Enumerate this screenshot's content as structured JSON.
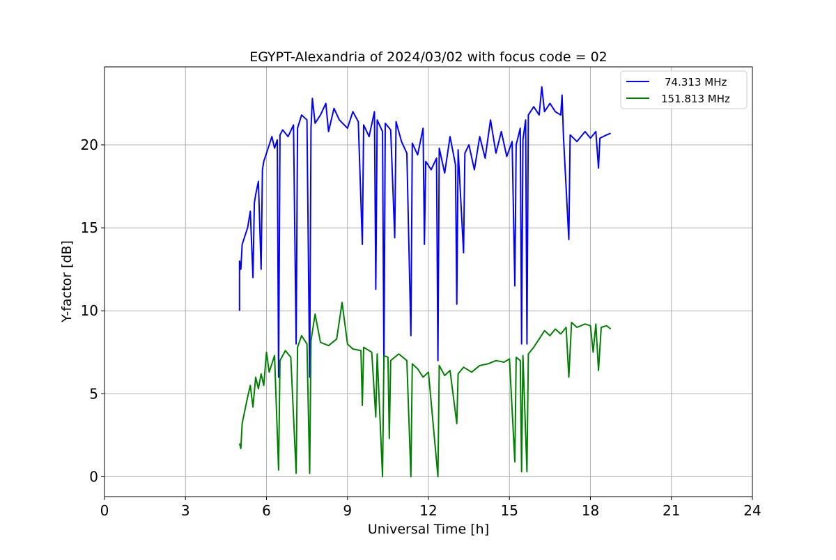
{
  "chart_data": {
    "type": "line",
    "title": "EGYPT-Alexandria of 2024/03/02 with focus code = 02",
    "xlabel": "Universal Time [h]",
    "ylabel": "Y-factor [dB]",
    "xlim": [
      0,
      24
    ],
    "ylim": [
      -1.2,
      24.7
    ],
    "x_ticks": [
      0,
      3,
      6,
      9,
      12,
      15,
      18,
      21,
      24
    ],
    "x_tick_labels": [
      "0",
      "3",
      "6",
      "9",
      "12",
      "15",
      "18",
      "21",
      "24"
    ],
    "y_ticks": [
      0,
      5,
      10,
      15,
      20
    ],
    "y_tick_labels": [
      "0",
      "5",
      "10",
      "15",
      "20"
    ],
    "grid": true,
    "legend_placement": "top-right",
    "series": [
      {
        "name": "74.313 MHz",
        "color": "#0000ff",
        "points": [
          [
            5.0,
            10.0
          ],
          [
            5.0,
            13.0
          ],
          [
            5.05,
            12.5
          ],
          [
            5.1,
            14.0
          ],
          [
            5.2,
            14.5
          ],
          [
            5.3,
            15.0
          ],
          [
            5.4,
            16.0
          ],
          [
            5.5,
            12.0
          ],
          [
            5.55,
            16.5
          ],
          [
            5.6,
            17.0
          ],
          [
            5.7,
            17.8
          ],
          [
            5.8,
            12.5
          ],
          [
            5.85,
            18.5
          ],
          [
            5.9,
            19.0
          ],
          [
            6.0,
            19.5
          ],
          [
            6.1,
            20.0
          ],
          [
            6.2,
            20.5
          ],
          [
            6.3,
            19.8
          ],
          [
            6.4,
            20.3
          ],
          [
            6.45,
            6.0
          ],
          [
            6.5,
            20.6
          ],
          [
            6.6,
            20.9
          ],
          [
            6.8,
            20.5
          ],
          [
            7.0,
            21.2
          ],
          [
            7.1,
            8.0
          ],
          [
            7.15,
            21.0
          ],
          [
            7.3,
            21.8
          ],
          [
            7.5,
            21.5
          ],
          [
            7.6,
            6.0
          ],
          [
            7.65,
            21.0
          ],
          [
            7.7,
            22.8
          ],
          [
            7.8,
            21.3
          ],
          [
            8.0,
            21.8
          ],
          [
            8.2,
            22.5
          ],
          [
            8.3,
            20.8
          ],
          [
            8.5,
            22.2
          ],
          [
            8.7,
            21.5
          ],
          [
            9.0,
            21.0
          ],
          [
            9.2,
            22.0
          ],
          [
            9.4,
            21.4
          ],
          [
            9.55,
            14.0
          ],
          [
            9.6,
            21.2
          ],
          [
            9.8,
            20.5
          ],
          [
            10.0,
            22.0
          ],
          [
            10.05,
            11.3
          ],
          [
            10.1,
            21.5
          ],
          [
            10.3,
            20.8
          ],
          [
            10.35,
            6.5
          ],
          [
            10.4,
            21.3
          ],
          [
            10.6,
            20.9
          ],
          [
            10.75,
            14.4
          ],
          [
            10.8,
            21.4
          ],
          [
            11.0,
            20.2
          ],
          [
            11.2,
            19.5
          ],
          [
            11.35,
            8.5
          ],
          [
            11.4,
            20.1
          ],
          [
            11.6,
            19.4
          ],
          [
            11.8,
            21.0
          ],
          [
            11.85,
            14.0
          ],
          [
            11.9,
            19.0
          ],
          [
            12.1,
            18.5
          ],
          [
            12.3,
            19.2
          ],
          [
            12.35,
            7.0
          ],
          [
            12.4,
            19.8
          ],
          [
            12.6,
            18.3
          ],
          [
            12.8,
            20.5
          ],
          [
            13.0,
            18.8
          ],
          [
            13.05,
            10.4
          ],
          [
            13.1,
            19.7
          ],
          [
            13.3,
            13.5
          ],
          [
            13.35,
            19.5
          ],
          [
            13.5,
            20.0
          ],
          [
            13.7,
            18.5
          ],
          [
            13.9,
            20.5
          ],
          [
            14.1,
            19.2
          ],
          [
            14.3,
            21.5
          ],
          [
            14.5,
            19.5
          ],
          [
            14.7,
            20.8
          ],
          [
            14.9,
            19.3
          ],
          [
            15.1,
            20.2
          ],
          [
            15.2,
            11.5
          ],
          [
            15.25,
            20.0
          ],
          [
            15.4,
            21.0
          ],
          [
            15.45,
            8.0
          ],
          [
            15.5,
            20.3
          ],
          [
            15.6,
            21.5
          ],
          [
            15.65,
            8.0
          ],
          [
            15.7,
            21.8
          ],
          [
            15.9,
            22.3
          ],
          [
            16.1,
            21.8
          ],
          [
            16.2,
            23.5
          ],
          [
            16.3,
            22.0
          ],
          [
            16.5,
            22.5
          ],
          [
            16.7,
            22.0
          ],
          [
            16.9,
            21.8
          ],
          [
            16.95,
            23.0
          ],
          [
            17.0,
            20.5
          ],
          [
            17.2,
            14.3
          ],
          [
            17.25,
            20.6
          ],
          [
            17.5,
            20.2
          ],
          [
            17.8,
            20.8
          ],
          [
            18.0,
            20.4
          ],
          [
            18.2,
            20.8
          ],
          [
            18.3,
            18.6
          ],
          [
            18.35,
            20.4
          ],
          [
            18.6,
            20.6
          ],
          [
            18.75,
            20.7
          ]
        ]
      },
      {
        "name": "151.813 MHz",
        "color": "#008000",
        "points": [
          [
            5.0,
            2.0
          ],
          [
            5.05,
            1.7
          ],
          [
            5.1,
            3.2
          ],
          [
            5.2,
            4.0
          ],
          [
            5.3,
            4.8
          ],
          [
            5.4,
            5.5
          ],
          [
            5.5,
            4.2
          ],
          [
            5.6,
            6.0
          ],
          [
            5.7,
            5.3
          ],
          [
            5.8,
            6.2
          ],
          [
            5.9,
            5.5
          ],
          [
            6.0,
            7.5
          ],
          [
            6.1,
            6.3
          ],
          [
            6.3,
            7.3
          ],
          [
            6.45,
            0.4
          ],
          [
            6.5,
            7.0
          ],
          [
            6.7,
            7.6
          ],
          [
            6.9,
            7.2
          ],
          [
            7.1,
            0.2
          ],
          [
            7.15,
            7.8
          ],
          [
            7.3,
            8.5
          ],
          [
            7.5,
            8.0
          ],
          [
            7.6,
            0.2
          ],
          [
            7.65,
            8.2
          ],
          [
            7.8,
            9.8
          ],
          [
            8.0,
            8.1
          ],
          [
            8.3,
            7.9
          ],
          [
            8.6,
            8.3
          ],
          [
            8.8,
            10.5
          ],
          [
            9.0,
            8.0
          ],
          [
            9.2,
            7.7
          ],
          [
            9.5,
            7.6
          ],
          [
            9.55,
            4.3
          ],
          [
            9.6,
            7.8
          ],
          [
            9.9,
            7.5
          ],
          [
            10.05,
            3.6
          ],
          [
            10.1,
            7.4
          ],
          [
            10.3,
            0.0
          ],
          [
            10.35,
            7.3
          ],
          [
            10.5,
            7.2
          ],
          [
            10.55,
            2.3
          ],
          [
            10.6,
            7.0
          ],
          [
            10.9,
            7.4
          ],
          [
            11.2,
            7.0
          ],
          [
            11.35,
            0.0
          ],
          [
            11.4,
            6.8
          ],
          [
            11.6,
            6.5
          ],
          [
            11.8,
            6.0
          ],
          [
            12.0,
            6.3
          ],
          [
            12.35,
            0.0
          ],
          [
            12.4,
            6.7
          ],
          [
            12.6,
            6.1
          ],
          [
            12.8,
            6.4
          ],
          [
            13.05,
            3.2
          ],
          [
            13.1,
            6.2
          ],
          [
            13.3,
            6.6
          ],
          [
            13.6,
            6.3
          ],
          [
            13.9,
            6.7
          ],
          [
            14.2,
            6.8
          ],
          [
            14.5,
            7.0
          ],
          [
            14.8,
            6.9
          ],
          [
            15.0,
            7.1
          ],
          [
            15.2,
            0.9
          ],
          [
            15.25,
            7.2
          ],
          [
            15.4,
            7.0
          ],
          [
            15.45,
            0.3
          ],
          [
            15.5,
            7.3
          ],
          [
            15.65,
            0.3
          ],
          [
            15.7,
            7.4
          ],
          [
            15.9,
            7.8
          ],
          [
            16.1,
            8.3
          ],
          [
            16.3,
            8.8
          ],
          [
            16.5,
            8.5
          ],
          [
            16.7,
            8.9
          ],
          [
            16.9,
            8.6
          ],
          [
            17.1,
            9.0
          ],
          [
            17.2,
            6.0
          ],
          [
            17.3,
            9.3
          ],
          [
            17.5,
            9.0
          ],
          [
            17.8,
            9.2
          ],
          [
            18.0,
            9.1
          ],
          [
            18.1,
            7.5
          ],
          [
            18.2,
            9.2
          ],
          [
            18.3,
            6.4
          ],
          [
            18.4,
            9.0
          ],
          [
            18.6,
            9.1
          ],
          [
            18.75,
            8.9
          ]
        ]
      }
    ]
  }
}
